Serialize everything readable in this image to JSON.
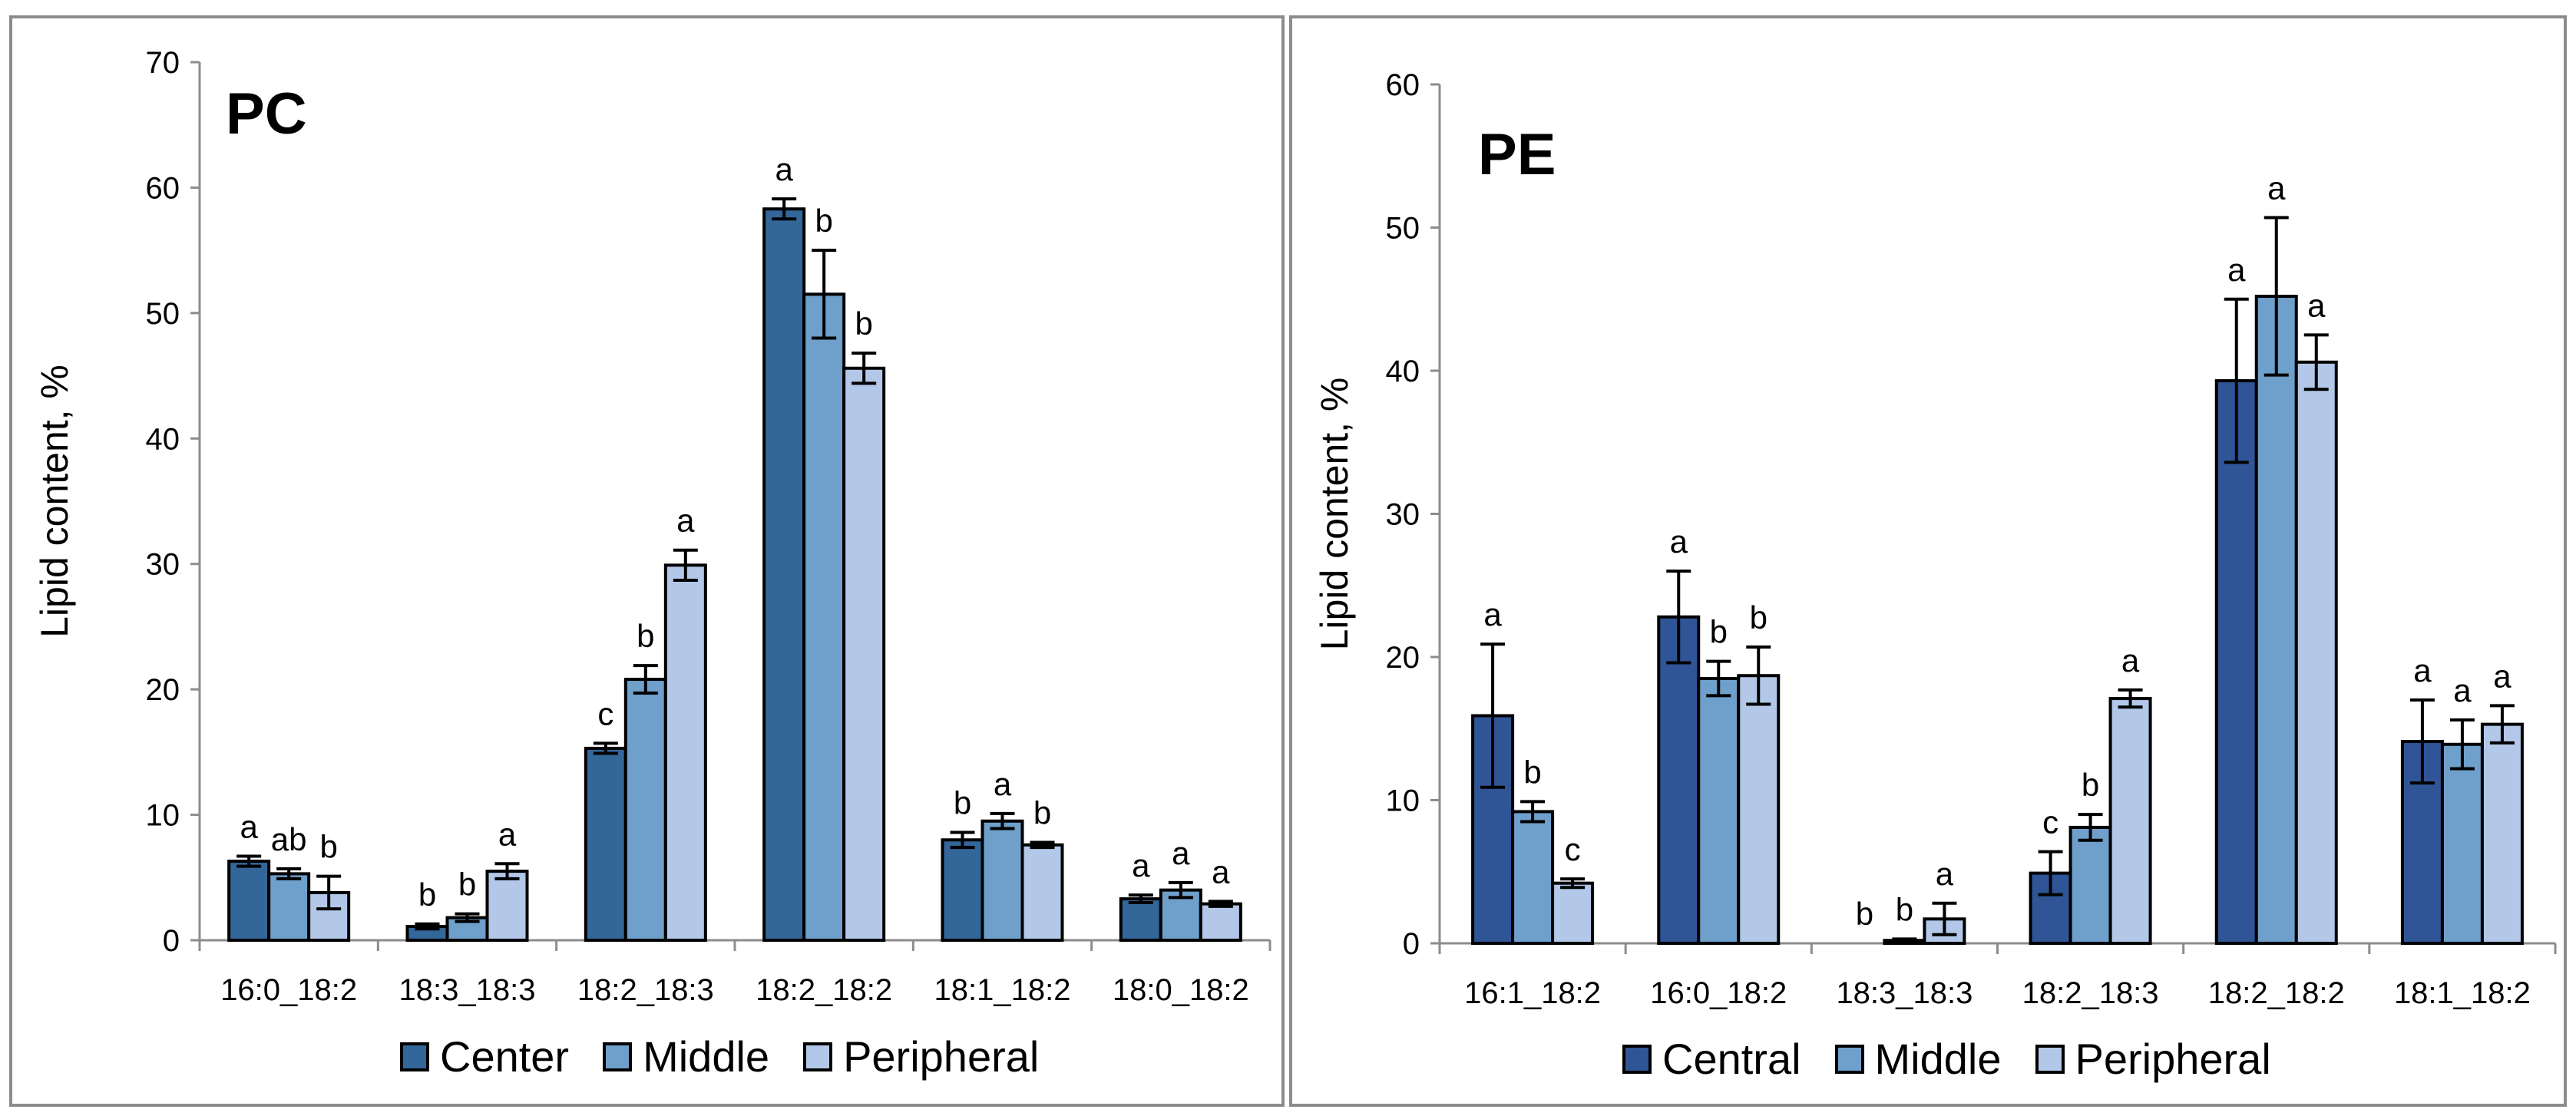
{
  "chart_data": [
    {
      "type": "bar",
      "title": "PC",
      "xlabel": "",
      "ylabel": "Lipid content, %",
      "ylim": [
        0,
        70
      ],
      "yticks": [
        0,
        10,
        20,
        30,
        40,
        50,
        60,
        70
      ],
      "categories": [
        "16:0_18:2",
        "18:3_18:3",
        "18:2_18:3",
        "18:2_18:2",
        "18:1_18:2",
        "18:0_18:2"
      ],
      "series": [
        {
          "name": "Center",
          "color": "#336699",
          "values": [
            6.3,
            1.1,
            15.3,
            58.3,
            8.0,
            3.3
          ],
          "errors": [
            0.4,
            0.2,
            0.4,
            0.8,
            0.6,
            0.3
          ],
          "letters": [
            "a",
            "b",
            "c",
            "a",
            "b",
            "a"
          ]
        },
        {
          "name": "Middle",
          "color": "#6f9fcb",
          "values": [
            5.3,
            1.8,
            20.8,
            51.5,
            9.5,
            4.0
          ],
          "errors": [
            0.4,
            0.3,
            1.1,
            3.5,
            0.6,
            0.6
          ],
          "letters": [
            "ab",
            "b",
            "b",
            "b",
            "a",
            "a"
          ]
        },
        {
          "name": "Peripheral",
          "color": "#b3c8e8",
          "values": [
            3.8,
            5.5,
            29.9,
            45.6,
            7.6,
            2.9
          ],
          "errors": [
            1.3,
            0.6,
            1.2,
            1.2,
            0.2,
            0.2
          ],
          "letters": [
            "b",
            "a",
            "a",
            "b",
            "b",
            "a"
          ]
        }
      ]
    },
    {
      "type": "bar",
      "title": "PE",
      "xlabel": "",
      "ylabel": "Lipid content, %",
      "ylim": [
        0,
        60
      ],
      "yticks": [
        0,
        10,
        20,
        30,
        40,
        50,
        60
      ],
      "categories": [
        "16:1_18:2",
        "16:0_18:2",
        "18:3_18:3",
        "18:2_18:3",
        "18:2_18:2",
        "18:1_18:2"
      ],
      "series": [
        {
          "name": "Central",
          "color": "#2f5597",
          "values": [
            15.9,
            22.8,
            0,
            4.9,
            39.3,
            14.1
          ],
          "errors": [
            5.0,
            3.2,
            0,
            1.5,
            5.7,
            2.9
          ],
          "letters": [
            "a",
            "a",
            "b",
            "c",
            "a",
            "a"
          ]
        },
        {
          "name": "Middle",
          "color": "#6f9fcb",
          "values": [
            9.2,
            18.5,
            0.2,
            8.1,
            45.2,
            13.9
          ],
          "errors": [
            0.7,
            1.2,
            0.1,
            0.9,
            5.5,
            1.7
          ],
          "letters": [
            "b",
            "b",
            "b",
            "b",
            "a",
            "a"
          ]
        },
        {
          "name": "Peripheral",
          "color": "#b3c8e8",
          "values": [
            4.2,
            18.7,
            1.7,
            17.1,
            40.6,
            15.3
          ],
          "errors": [
            0.3,
            2.0,
            1.1,
            0.6,
            1.9,
            1.3
          ],
          "letters": [
            "c",
            "b",
            "a",
            "a",
            "a",
            "a"
          ]
        }
      ]
    }
  ]
}
